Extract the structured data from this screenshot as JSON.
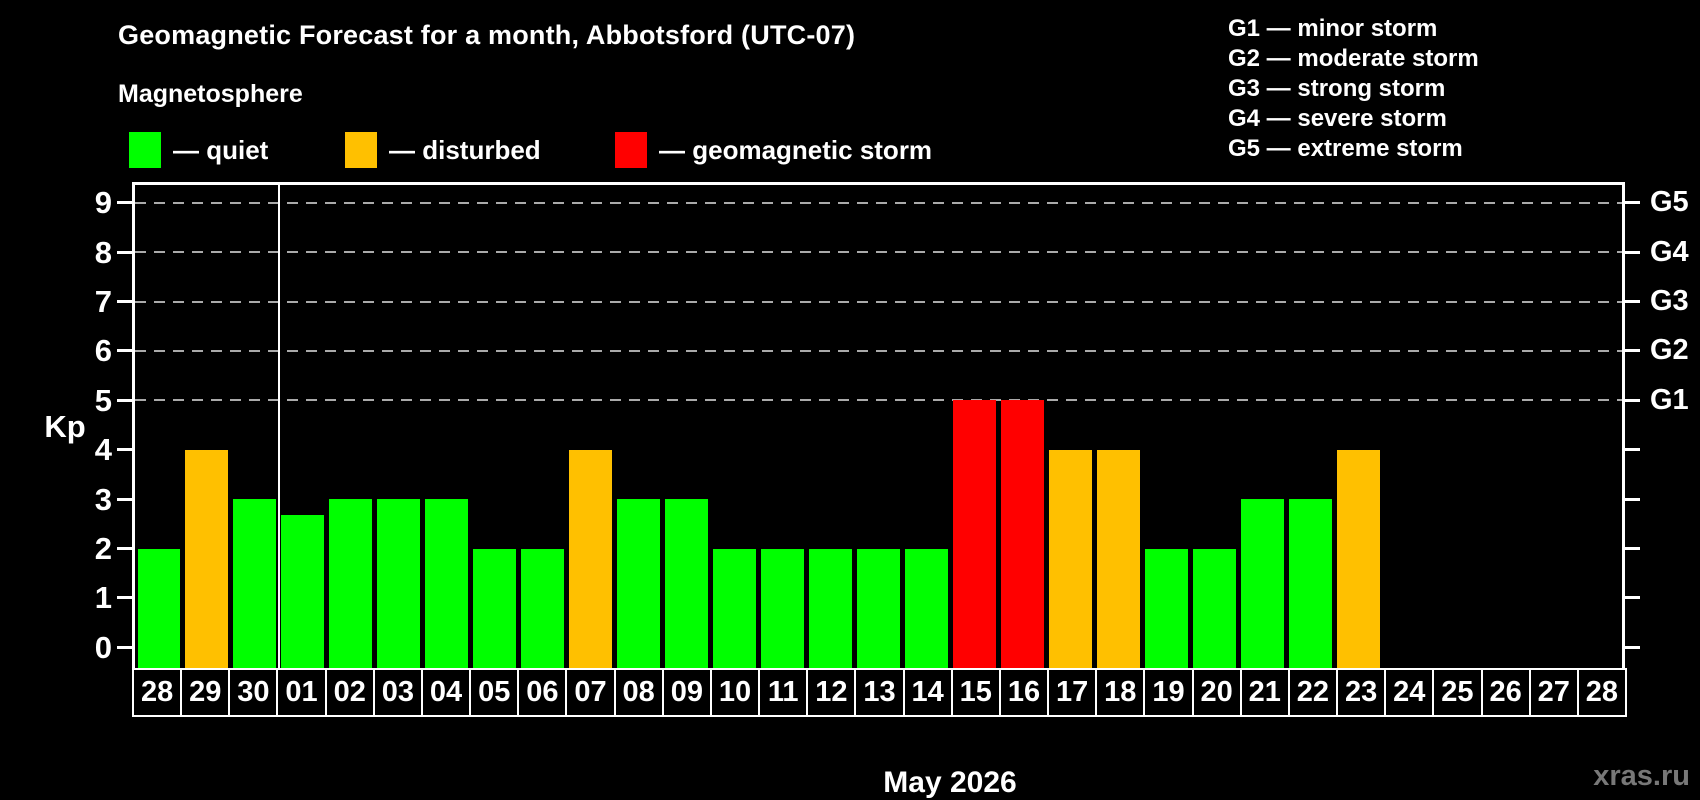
{
  "title": "Geomagnetic Forecast for a month, Abbotsford (UTC-07)",
  "subtitle": "Magnetosphere",
  "legend": {
    "items": [
      {
        "key": "quiet",
        "label": "— quiet",
        "color": "#00ff00"
      },
      {
        "key": "disturbed",
        "label": "— disturbed",
        "color": "#ffc000"
      },
      {
        "key": "storm",
        "label": "— geomagnetic storm",
        "color": "#ff0000"
      }
    ]
  },
  "g_scale_legend": [
    "G1 — minor storm",
    "G2 — moderate storm",
    "G3 — strong storm",
    "G4 — severe storm",
    "G5 — extreme storm"
  ],
  "watermark": "xras.ru",
  "colors": {
    "background": "#000000",
    "axis": "#ffffff",
    "grid": "#aaaaaa",
    "quiet": "#00ff00",
    "disturbed": "#ffc000",
    "storm": "#ff0000",
    "watermark": "#787878"
  },
  "chart_data": {
    "type": "bar",
    "title": "Geomagnetic Forecast for a month, Abbotsford (UTC-07)",
    "xlabel": "May 2026",
    "ylabel": "Kp",
    "ylim": [
      0,
      9
    ],
    "y_ticks": [
      "0",
      "1",
      "2",
      "3",
      "4",
      "5",
      "6",
      "7",
      "8",
      "9"
    ],
    "gridlines_at": [
      5,
      6,
      7,
      8,
      9
    ],
    "grid_style": "dashed horizontal, Kp 5 to 9 only",
    "right_axis_labels": {
      "5": "G1",
      "6": "G2",
      "7": "G3",
      "8": "G4",
      "9": "G5"
    },
    "categories": [
      "28",
      "29",
      "30",
      "01",
      "02",
      "03",
      "04",
      "05",
      "06",
      "07",
      "08",
      "09",
      "10",
      "11",
      "12",
      "13",
      "14",
      "15",
      "16",
      "17",
      "18",
      "19",
      "20",
      "21",
      "22",
      "23",
      "24",
      "25",
      "26",
      "27",
      "28"
    ],
    "values": [
      2,
      4,
      3,
      2.67,
      3,
      3,
      3,
      2,
      2,
      4,
      3,
      3,
      2,
      2,
      2,
      2,
      2,
      5,
      5,
      4,
      4,
      2,
      2,
      3,
      3,
      4,
      null,
      null,
      null,
      null,
      null
    ],
    "point_states": [
      "quiet",
      "disturbed",
      "quiet",
      "quiet",
      "quiet",
      "quiet",
      "quiet",
      "quiet",
      "quiet",
      "disturbed",
      "quiet",
      "quiet",
      "quiet",
      "quiet",
      "quiet",
      "quiet",
      "quiet",
      "storm",
      "storm",
      "disturbed",
      "disturbed",
      "quiet",
      "quiet",
      "quiet",
      "quiet",
      "disturbed",
      null,
      null,
      null,
      null,
      null
    ],
    "month_separator_after_index": 2,
    "legend_position": "top-left and top-right"
  }
}
